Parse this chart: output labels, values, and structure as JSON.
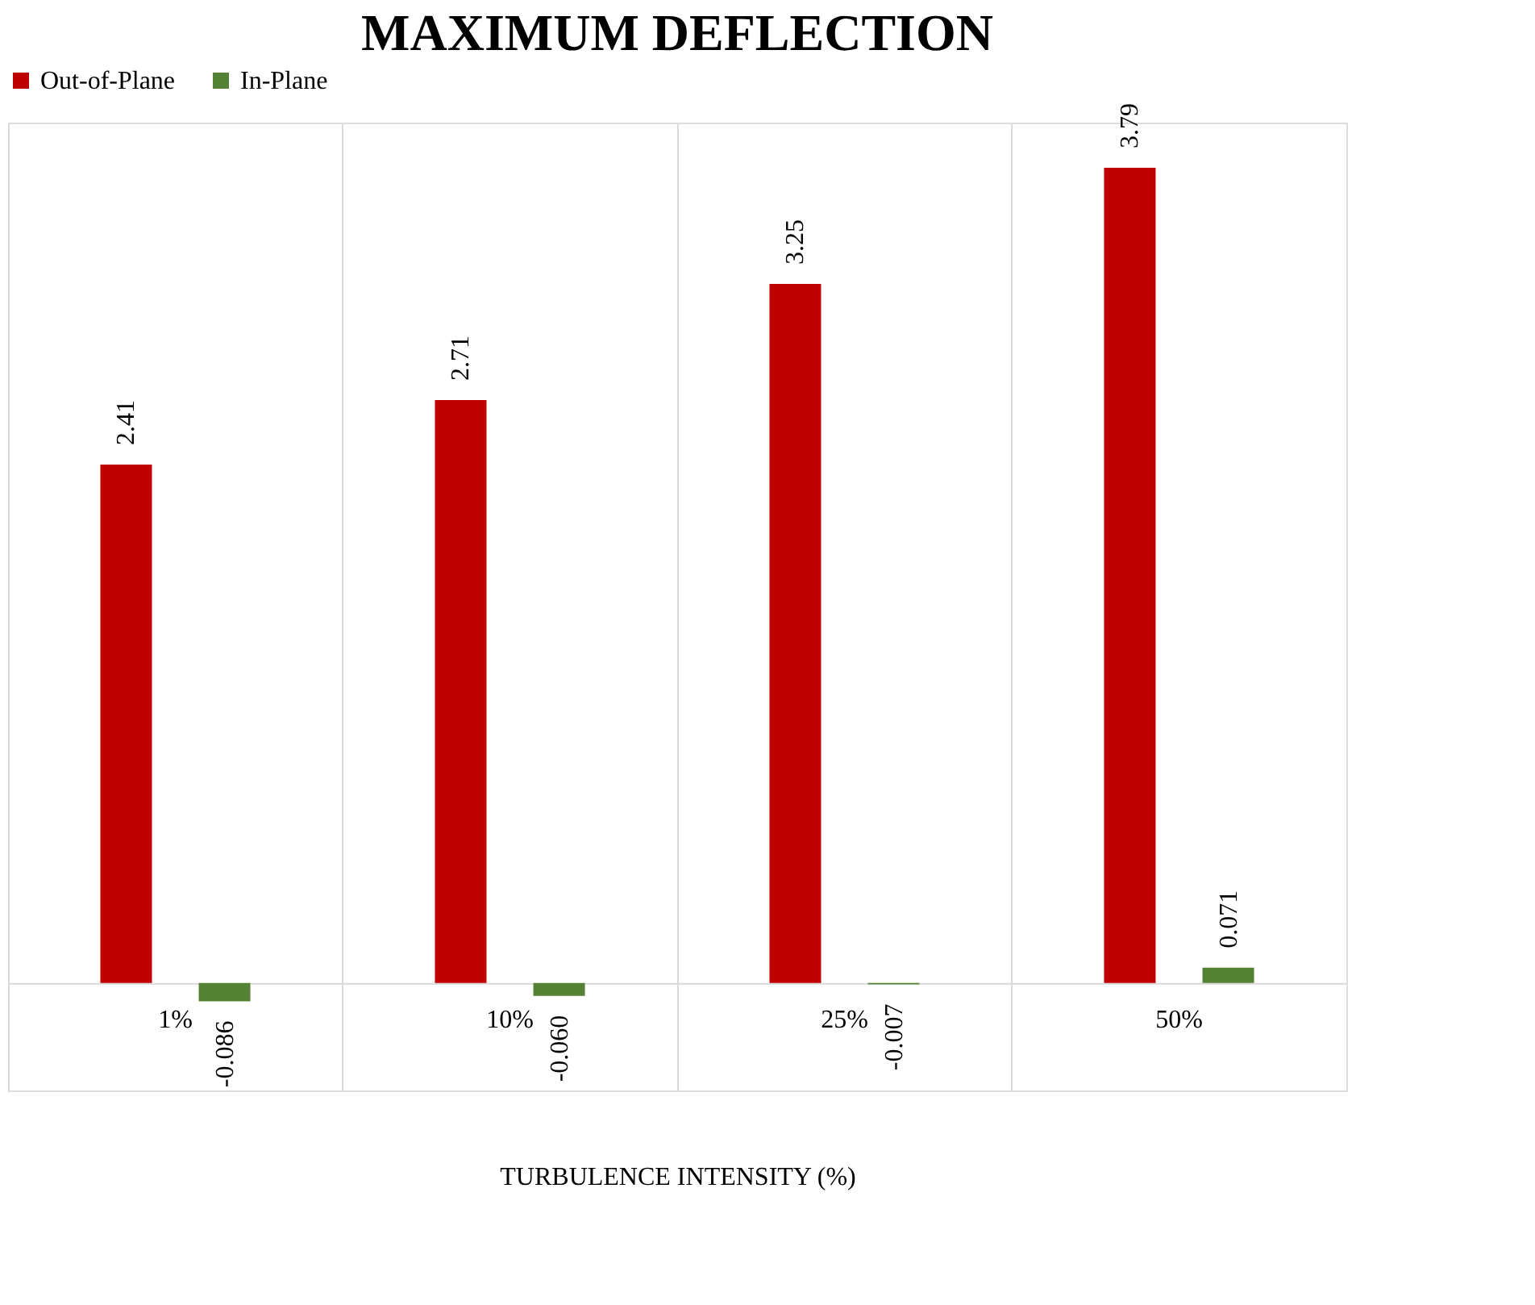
{
  "chart_data": {
    "type": "bar",
    "title": "MAXIMUM DEFLECTION",
    "xlabel": "TURBULENCE INTENSITY (%)",
    "categories": [
      "1%",
      "10%",
      "25%",
      "50%"
    ],
    "series": [
      {
        "name": "Out-of-Plane",
        "color": "#c00000",
        "values": [
          2.41,
          2.71,
          3.25,
          3.79
        ],
        "value_labels": [
          "2.41",
          "2.71",
          "3.25",
          "3.79"
        ]
      },
      {
        "name": "In-Plane",
        "color": "#548235",
        "values": [
          -0.086,
          -0.06,
          -0.007,
          0.071
        ],
        "value_labels": [
          "-0.086",
          "-0.060",
          "-0.007",
          "0.071"
        ]
      }
    ],
    "ylim": [
      -0.5,
      4
    ],
    "tick_labels": "x",
    "grid": "x",
    "legend": "top"
  }
}
